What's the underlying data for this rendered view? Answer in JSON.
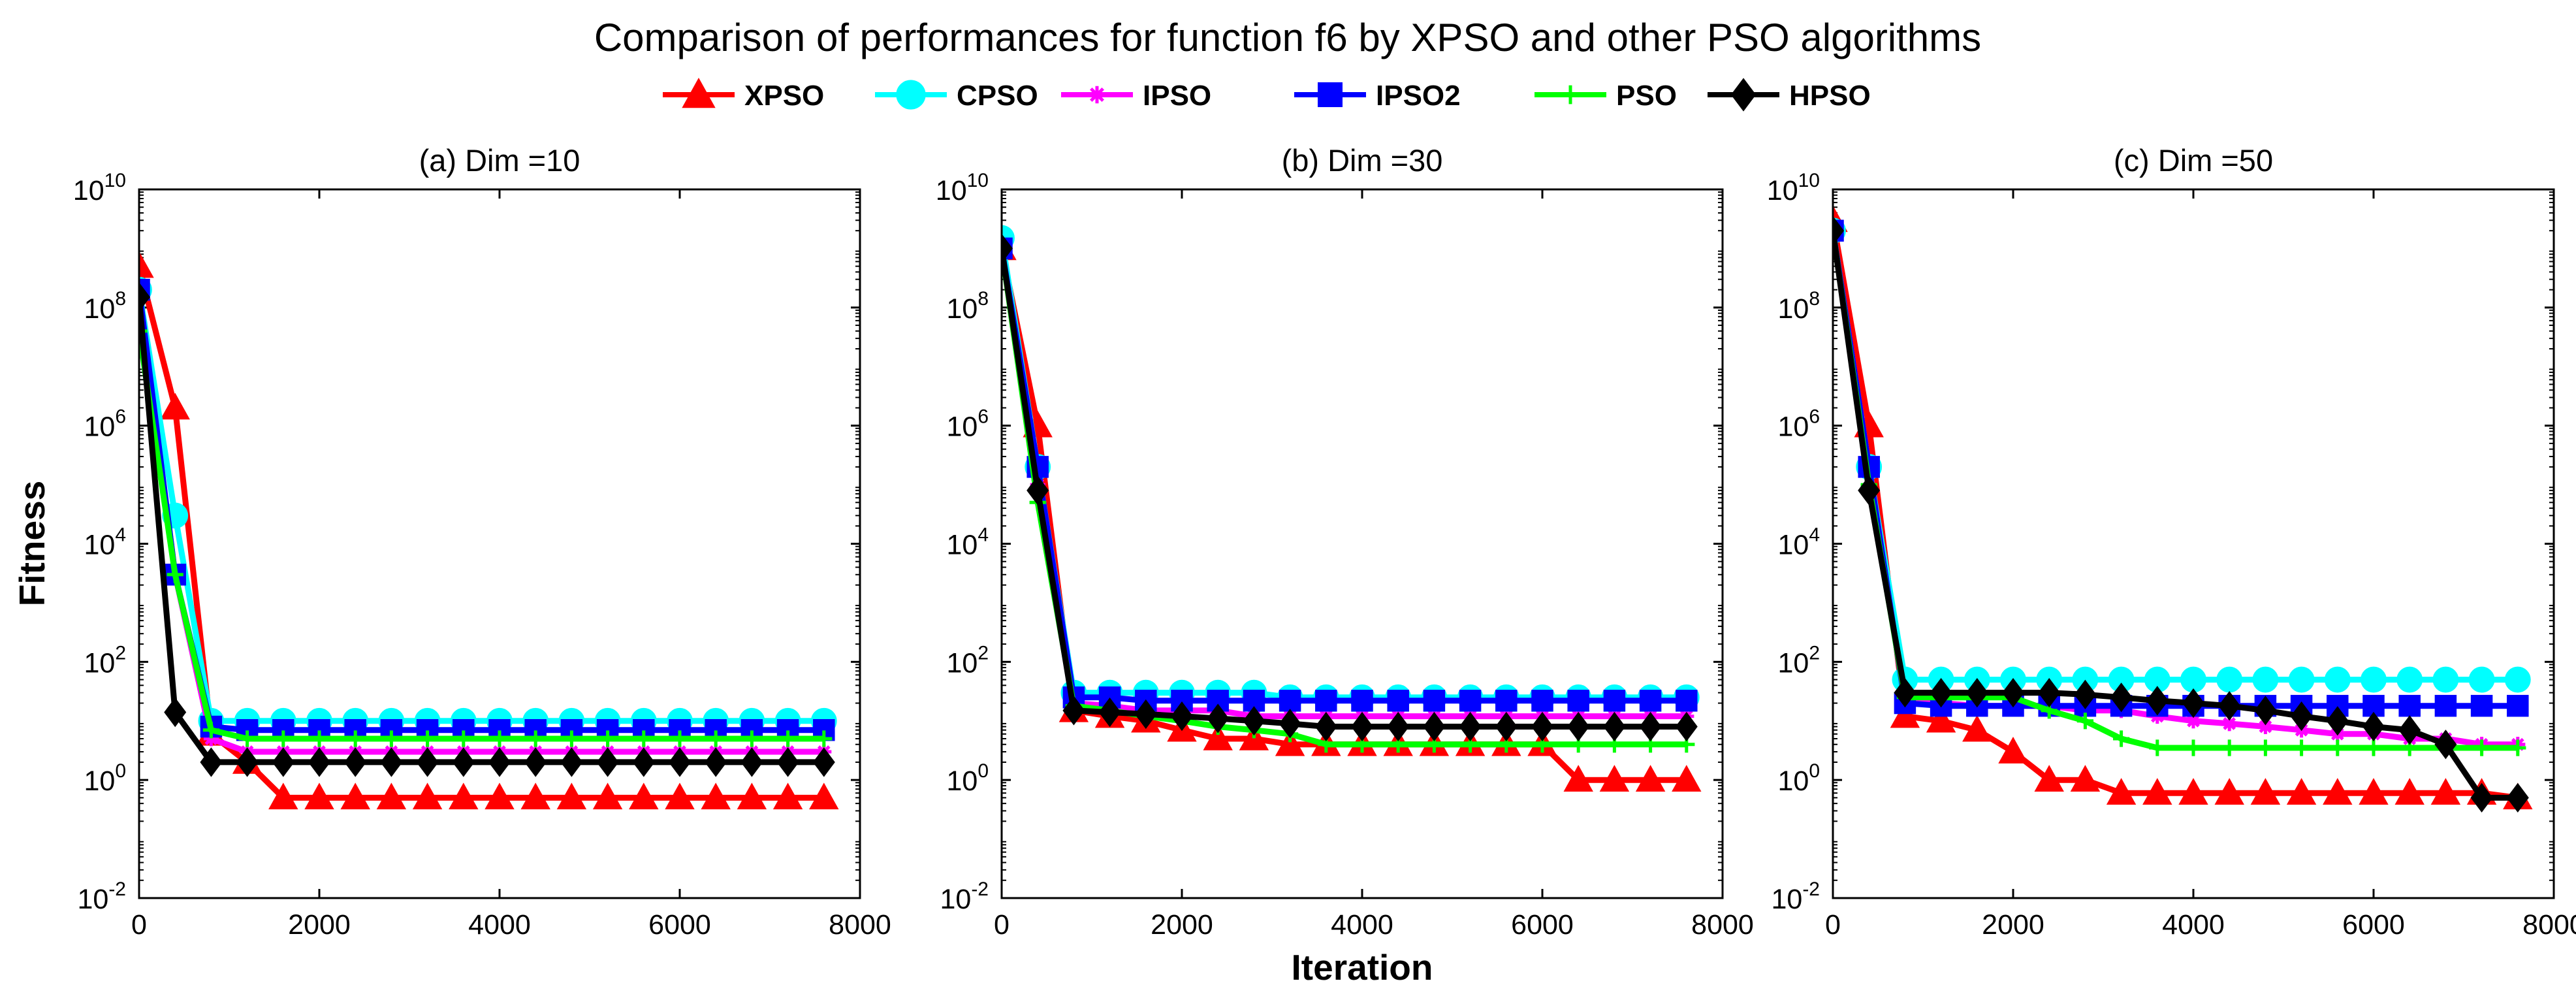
{
  "figure": {
    "title": "Comparison of performances for function f6 by XPSO and other PSO algorithms",
    "xlabel": "Iteration",
    "ylabel": "Fitness"
  },
  "legend": [
    {
      "name": "XPSO",
      "color": "#ff0000",
      "marker": "triangle"
    },
    {
      "name": "CPSO",
      "color": "#00ffff",
      "marker": "circle"
    },
    {
      "name": "IPSO",
      "color": "#ff00ff",
      "marker": "asterisk"
    },
    {
      "name": "IPSO2",
      "color": "#0000ff",
      "marker": "square"
    },
    {
      "name": "PSO",
      "color": "#00ff00",
      "marker": "plus"
    },
    {
      "name": "HPSO",
      "color": "#000000",
      "marker": "diamond"
    }
  ],
  "chart_data": [
    {
      "type": "line",
      "title": "(a) Dim =10",
      "xlabel": "",
      "ylabel": "Fitness",
      "yscale": "log",
      "xlim": [
        0,
        8000
      ],
      "ylim_exp": [
        -2,
        10
      ],
      "xticks": [
        "0",
        "2000",
        "4000",
        "6000",
        "8000"
      ],
      "ytick_base": "10",
      "ytick_exponents": [
        "-2",
        "0",
        "2",
        "4",
        "6",
        "8",
        "10"
      ],
      "x": [
        0,
        400,
        800,
        1200,
        1600,
        2000,
        2400,
        2800,
        3200,
        3600,
        4000,
        4400,
        4800,
        5200,
        5600,
        6000,
        6400,
        6800,
        7200,
        7600
      ],
      "series": [
        {
          "name": "XPSO",
          "values": [
            500000000,
            2000000,
            6,
            2,
            0.5,
            0.5,
            0.5,
            0.5,
            0.5,
            0.5,
            0.5,
            0.5,
            0.5,
            0.5,
            0.5,
            0.5,
            0.5,
            0.5,
            0.5,
            0.5
          ]
        },
        {
          "name": "CPSO",
          "values": [
            200000000,
            30000,
            10,
            10,
            10,
            10,
            10,
            10,
            10,
            10,
            10,
            10,
            10,
            10,
            10,
            10,
            10,
            10,
            10,
            10
          ]
        },
        {
          "name": "IPSO",
          "values": [
            150000000,
            3000,
            5,
            3,
            3,
            3,
            3,
            3,
            3,
            3,
            3,
            3,
            3,
            3,
            3,
            3,
            3,
            3,
            3,
            3
          ]
        },
        {
          "name": "IPSO2",
          "values": [
            200000000,
            3000,
            8,
            7,
            7,
            7,
            7,
            7,
            7,
            7,
            7,
            7,
            7,
            7,
            7,
            7,
            7,
            7,
            7,
            7
          ]
        },
        {
          "name": "PSO",
          "values": [
            40000000,
            3000,
            7,
            5,
            5,
            5,
            5,
            5,
            5,
            5,
            5,
            5,
            5,
            5,
            5,
            5,
            5,
            5,
            5,
            5
          ]
        },
        {
          "name": "HPSO",
          "values": [
            150000000,
            14,
            2,
            2,
            2,
            2,
            2,
            2,
            2,
            2,
            2,
            2,
            2,
            2,
            2,
            2,
            2,
            2,
            2,
            2
          ]
        }
      ]
    },
    {
      "type": "line",
      "title": "(b) Dim =30",
      "xlabel": "Iteration",
      "ylabel": "",
      "yscale": "log",
      "xlim": [
        0,
        8000
      ],
      "ylim_exp": [
        -2,
        10
      ],
      "xticks": [
        "0",
        "2000",
        "4000",
        "6000",
        "8000"
      ],
      "ytick_base": "10",
      "ytick_exponents": [
        "-2",
        "0",
        "2",
        "4",
        "6",
        "8",
        "10"
      ],
      "x": [
        0,
        400,
        800,
        1200,
        1600,
        2000,
        2400,
        2800,
        3200,
        3600,
        4000,
        4400,
        4800,
        5200,
        5600,
        6000,
        6400,
        6800,
        7200,
        7600
      ],
      "series": [
        {
          "name": "XPSO",
          "values": [
            1000000000,
            1000000,
            15,
            12,
            10,
            7,
            5,
            5,
            4,
            4,
            4,
            4,
            4,
            4,
            4,
            4,
            1,
            1,
            1,
            1
          ]
        },
        {
          "name": "CPSO",
          "values": [
            1500000000,
            200000,
            30,
            30,
            30,
            30,
            30,
            30,
            25,
            25,
            25,
            25,
            25,
            25,
            25,
            25,
            25,
            25,
            25,
            25
          ]
        },
        {
          "name": "IPSO",
          "values": [
            1000000000,
            100000,
            20,
            18,
            15,
            15,
            15,
            12,
            12,
            12,
            12,
            12,
            12,
            12,
            12,
            12,
            12,
            12,
            12,
            12
          ]
        },
        {
          "name": "IPSO2",
          "values": [
            1000000000,
            200000,
            25,
            25,
            22,
            22,
            22,
            22,
            22,
            22,
            22,
            22,
            22,
            22,
            22,
            22,
            22,
            22,
            22,
            22
          ]
        },
        {
          "name": "PSO",
          "values": [
            1000000000,
            50000,
            18,
            15,
            12,
            10,
            8,
            7,
            6,
            4,
            4,
            4,
            4,
            4,
            4,
            4,
            4,
            4,
            4,
            4
          ]
        },
        {
          "name": "HPSO",
          "values": [
            1000000000,
            80000,
            15,
            14,
            13,
            12,
            11,
            10,
            9,
            8,
            8,
            8,
            8,
            8,
            8,
            8,
            8,
            8,
            8,
            8
          ]
        }
      ]
    },
    {
      "type": "line",
      "title": "(c) Dim =50",
      "xlabel": "",
      "ylabel": "",
      "yscale": "log",
      "xlim": [
        0,
        8000
      ],
      "ylim_exp": [
        -2,
        10
      ],
      "xticks": [
        "0",
        "2000",
        "4000",
        "6000",
        "8000"
      ],
      "ytick_base": "10",
      "ytick_exponents": [
        "-2",
        "0",
        "2",
        "4",
        "6",
        "8",
        "10"
      ],
      "x": [
        0,
        400,
        800,
        1200,
        1600,
        2000,
        2400,
        2800,
        3200,
        3600,
        4000,
        4400,
        4800,
        5200,
        5600,
        6000,
        6400,
        6800,
        7200,
        7600
      ],
      "series": [
        {
          "name": "XPSO",
          "values": [
            3000000000,
            1000000,
            12,
            10,
            7,
            3,
            1,
            1,
            0.6,
            0.6,
            0.6,
            0.6,
            0.6,
            0.6,
            0.6,
            0.6,
            0.6,
            0.6,
            0.6,
            0.5
          ]
        },
        {
          "name": "CPSO",
          "values": [
            2000000000,
            200000,
            50,
            50,
            50,
            50,
            50,
            50,
            50,
            50,
            50,
            50,
            50,
            50,
            50,
            50,
            50,
            50,
            50,
            50
          ]
        },
        {
          "name": "IPSO",
          "values": [
            2000000000,
            200000,
            20,
            20,
            18,
            18,
            18,
            15,
            15,
            12,
            10,
            9,
            8,
            7,
            6,
            6,
            5,
            5,
            4,
            4
          ]
        },
        {
          "name": "IPSO2",
          "values": [
            2000000000,
            200000,
            20,
            18,
            18,
            18,
            18,
            18,
            18,
            18,
            18,
            18,
            18,
            18,
            18,
            18,
            18,
            18,
            18,
            18
          ]
        },
        {
          "name": "PSO",
          "values": [
            2000000000,
            100000,
            25,
            25,
            25,
            25,
            15,
            10,
            5,
            3.5,
            3.5,
            3.5,
            3.5,
            3.5,
            3.5,
            3.5,
            3.5,
            3.5,
            3.5,
            3.5
          ]
        },
        {
          "name": "HPSO",
          "values": [
            2000000000,
            80000,
            30,
            30,
            30,
            30,
            30,
            28,
            25,
            22,
            20,
            18,
            15,
            12,
            10,
            8,
            7,
            4,
            0.5,
            0.5
          ]
        }
      ]
    }
  ]
}
